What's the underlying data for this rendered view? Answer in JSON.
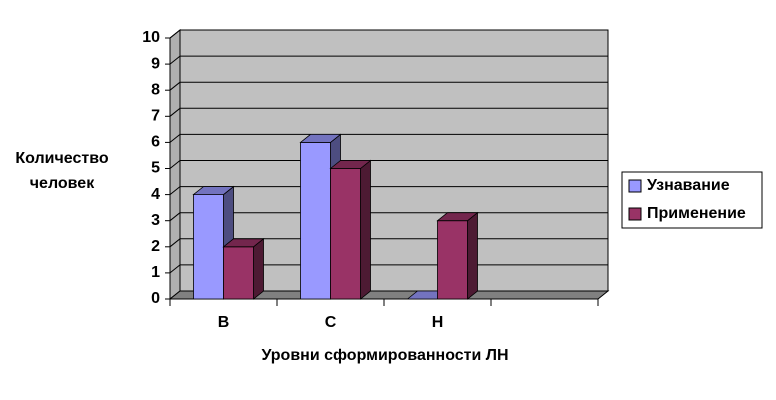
{
  "chart_data": {
    "type": "bar3d",
    "x_label": "Уровни сформированности ЛН",
    "y_label": "Количество человек",
    "categories": [
      "В",
      "С",
      "Н",
      null
    ],
    "series": [
      {
        "name": "Узнавание",
        "color": "#9999ff",
        "values": [
          4,
          6,
          0,
          null
        ]
      },
      {
        "name": "Применение",
        "color": "#993366",
        "values": [
          2,
          5,
          3,
          null
        ]
      }
    ],
    "ylim": [
      0,
      10
    ],
    "yticks": [
      0,
      1,
      2,
      3,
      4,
      5,
      6,
      7,
      8,
      9,
      10
    ],
    "grid": true,
    "legend": "right"
  }
}
